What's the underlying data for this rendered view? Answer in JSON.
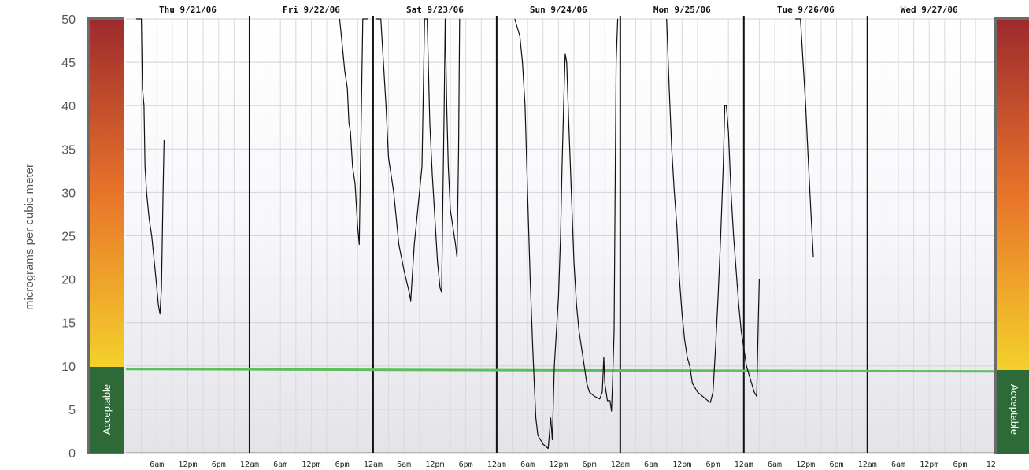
{
  "chart_data": {
    "type": "line",
    "ylabel": "micrograms per cubic meter",
    "ylim": [
      0,
      50
    ],
    "yticks": [
      0,
      5,
      10,
      15,
      20,
      25,
      30,
      35,
      40,
      45,
      50
    ],
    "days": [
      "Thu 9/21/06",
      "Fri 9/22/06",
      "Sat 9/23/06",
      "Sun 9/24/06",
      "Mon 9/25/06",
      "Tue 9/26/06",
      "Wed 9/27/06"
    ],
    "hour_ticks": [
      "6am",
      "12pm",
      "6pm",
      "12am"
    ],
    "last_tick": "12",
    "threshold": 10,
    "acceptable_label": "Acceptable",
    "grid": true,
    "colors": {
      "line": "#111111",
      "threshold": "#5cbf5c",
      "acceptable": "#2e6a37",
      "scale_top": "#9e2a2e",
      "scale_mid": "#e8742a",
      "scale_bottom": "#f4d12b"
    },
    "series": [
      {
        "points": [
          [
            2,
            50
          ],
          [
            3,
            50
          ],
          [
            3.2,
            42
          ],
          [
            3.5,
            40
          ],
          [
            3.7,
            33
          ],
          [
            4,
            30
          ],
          [
            4.5,
            27
          ],
          [
            5,
            25
          ],
          [
            5.5,
            22
          ],
          [
            6,
            19
          ],
          [
            6.3,
            17
          ],
          [
            6.6,
            16
          ],
          [
            6.9,
            19
          ],
          [
            7.2,
            30
          ],
          [
            7.4,
            36
          ]
        ]
      },
      {
        "points": [
          [
            41.5,
            50
          ],
          [
            42,
            47
          ],
          [
            42.5,
            44
          ],
          [
            43,
            42
          ],
          [
            43.3,
            38
          ],
          [
            43.6,
            37
          ],
          [
            44,
            33
          ],
          [
            44.5,
            31
          ],
          [
            45,
            26
          ],
          [
            45.3,
            24
          ],
          [
            45.6,
            35
          ],
          [
            46,
            50
          ],
          [
            47,
            50
          ]
        ]
      },
      {
        "points": [
          [
            48.5,
            50
          ],
          [
            49.5,
            50
          ],
          [
            50.5,
            40
          ],
          [
            51,
            34
          ],
          [
            52,
            30
          ],
          [
            53,
            24
          ],
          [
            54,
            21
          ],
          [
            55,
            18.5
          ],
          [
            55.3,
            17.5
          ],
          [
            56,
            24
          ],
          [
            57,
            30
          ],
          [
            57.5,
            33
          ],
          [
            58,
            50
          ],
          [
            58.5,
            50
          ],
          [
            59,
            38
          ],
          [
            59.5,
            32
          ],
          [
            60,
            27
          ],
          [
            60.5,
            22
          ],
          [
            61,
            19
          ],
          [
            61.3,
            18.5
          ],
          [
            61.8,
            40
          ],
          [
            62,
            50
          ],
          [
            62.3,
            40
          ],
          [
            62.6,
            33
          ],
          [
            63,
            28
          ],
          [
            63.5,
            26
          ],
          [
            64,
            24
          ],
          [
            64.3,
            22.5
          ],
          [
            64.6,
            35
          ],
          [
            64.8,
            50
          ]
        ]
      },
      {
        "points": [
          [
            75.5,
            50
          ],
          [
            76.5,
            48
          ],
          [
            77,
            45
          ],
          [
            77.5,
            40
          ],
          [
            78,
            30
          ],
          [
            78.5,
            20
          ],
          [
            79,
            12
          ],
          [
            79.3,
            8
          ],
          [
            79.6,
            4
          ],
          [
            80,
            2
          ],
          [
            81,
            1
          ],
          [
            82,
            0.5
          ],
          [
            82.5,
            4
          ],
          [
            82.8,
            1.5
          ],
          [
            83.2,
            10
          ],
          [
            84,
            18
          ],
          [
            84.4,
            25
          ],
          [
            84.7,
            33
          ],
          [
            85,
            40
          ],
          [
            85.3,
            46
          ],
          [
            85.6,
            45
          ],
          [
            86,
            38
          ],
          [
            86.5,
            30
          ],
          [
            87,
            22
          ],
          [
            87.5,
            17
          ],
          [
            88,
            14
          ],
          [
            88.5,
            12
          ],
          [
            89,
            10
          ],
          [
            89.5,
            8
          ],
          [
            90,
            7
          ],
          [
            91,
            6.5
          ],
          [
            92,
            6.2
          ],
          [
            92.5,
            7
          ],
          [
            92.8,
            11
          ],
          [
            93,
            8
          ],
          [
            93.5,
            6
          ],
          [
            94,
            6
          ],
          [
            94.3,
            4.8
          ],
          [
            94.5,
            8
          ],
          [
            94.8,
            14
          ],
          [
            95,
            30
          ],
          [
            95.2,
            45
          ],
          [
            95.5,
            50
          ]
        ]
      },
      {
        "points": [
          [
            105,
            50
          ],
          [
            105.5,
            42
          ],
          [
            106,
            35
          ],
          [
            106.5,
            30
          ],
          [
            107,
            26
          ],
          [
            107.5,
            20
          ],
          [
            108,
            16
          ],
          [
            108.5,
            13
          ],
          [
            109,
            11
          ],
          [
            109.5,
            10
          ],
          [
            110,
            8
          ],
          [
            111,
            7
          ],
          [
            112,
            6.5
          ],
          [
            113,
            6
          ],
          [
            113.5,
            5.8
          ],
          [
            114,
            7
          ],
          [
            114.5,
            12
          ],
          [
            115,
            18
          ],
          [
            115.5,
            25
          ],
          [
            116,
            33
          ],
          [
            116.3,
            40
          ],
          [
            116.6,
            40
          ],
          [
            117,
            37
          ],
          [
            117.5,
            30
          ],
          [
            118,
            25
          ],
          [
            118.5,
            21
          ],
          [
            119,
            17
          ],
          [
            119.5,
            14
          ],
          [
            120,
            12
          ],
          [
            120.5,
            10
          ],
          [
            121,
            9
          ],
          [
            121.5,
            8
          ],
          [
            122,
            7
          ],
          [
            122.5,
            6.5
          ],
          [
            122.8,
            15
          ],
          [
            123,
            20
          ]
        ]
      },
      {
        "points": [
          [
            130,
            50
          ],
          [
            131,
            50
          ],
          [
            131.5,
            45
          ],
          [
            132,
            40
          ],
          [
            132.5,
            34
          ],
          [
            133,
            28
          ],
          [
            133.5,
            22.5
          ]
        ]
      }
    ]
  }
}
